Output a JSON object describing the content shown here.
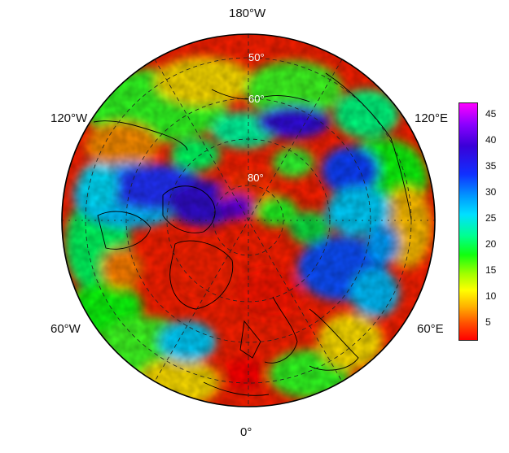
{
  "map": {
    "lon_labels": {
      "top": "180°W",
      "bottom": "0°",
      "upper_left": "120°W",
      "upper_right": "120°E",
      "lower_left": "60°W",
      "lower_right": "60°E"
    },
    "lat_labels": [
      "50°",
      "60°",
      "80°"
    ]
  },
  "colorbar": {
    "ticks": [
      "45",
      "40",
      "35",
      "30",
      "25",
      "20",
      "15",
      "10",
      "5"
    ],
    "range": [
      1,
      47
    ]
  }
}
